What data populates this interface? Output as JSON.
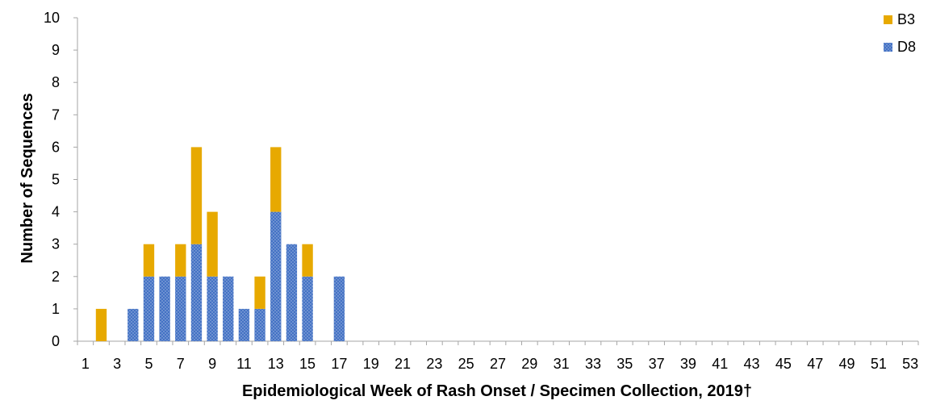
{
  "chart_data": {
    "type": "bar",
    "stacked": true,
    "xlabel": "Epidemiological Week of Rash Onset / Specimen Collection, 2019†",
    "ylabel": "Number of Sequences",
    "ylim": [
      0,
      10
    ],
    "yticks": [
      "0",
      "1",
      "2",
      "3",
      "4",
      "5",
      "6",
      "7",
      "8",
      "9",
      "10"
    ],
    "x_range": [
      1,
      53
    ],
    "xtick_labels": [
      "1",
      "3",
      "5",
      "7",
      "9",
      "11",
      "13",
      "15",
      "17",
      "19",
      "21",
      "23",
      "25",
      "27",
      "29",
      "31",
      "33",
      "35",
      "37",
      "39",
      "41",
      "43",
      "45",
      "47",
      "49",
      "51",
      "53"
    ],
    "grid": false,
    "legend_position": "top-right",
    "series": [
      {
        "name": "D8",
        "color": "#4472C4",
        "pattern": "dotted",
        "values": [
          0,
          0,
          0,
          1,
          2,
          2,
          2,
          3,
          2,
          2,
          1,
          1,
          4,
          3,
          2,
          0,
          2,
          0,
          0,
          0,
          0,
          0,
          0,
          0,
          0,
          0,
          0,
          0,
          0,
          0,
          0,
          0,
          0,
          0,
          0,
          0,
          0,
          0,
          0,
          0,
          0,
          0,
          0,
          0,
          0,
          0,
          0,
          0,
          0,
          0,
          0,
          0,
          0
        ]
      },
      {
        "name": "B3",
        "color": "#E7A900",
        "values": [
          0,
          1,
          0,
          0,
          1,
          0,
          1,
          3,
          2,
          0,
          0,
          1,
          2,
          0,
          1,
          0,
          0,
          0,
          0,
          0,
          0,
          0,
          0,
          0,
          0,
          0,
          0,
          0,
          0,
          0,
          0,
          0,
          0,
          0,
          0,
          0,
          0,
          0,
          0,
          0,
          0,
          0,
          0,
          0,
          0,
          0,
          0,
          0,
          0,
          0,
          0,
          0,
          0
        ]
      }
    ],
    "legend_order": [
      "B3",
      "D8"
    ]
  }
}
